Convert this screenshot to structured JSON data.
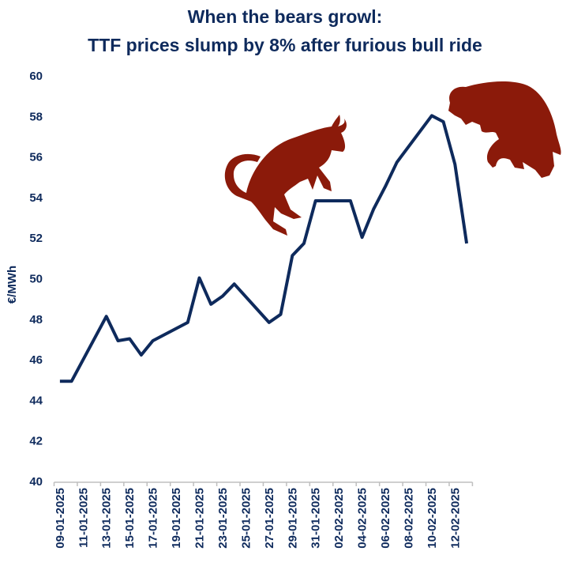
{
  "chart_data": {
    "type": "line",
    "title": [
      "When the bears growl:",
      "TTF prices slump by 8% after furious bull ride"
    ],
    "xlabel": "",
    "ylabel": "€/MWh",
    "ylim": [
      40,
      60
    ],
    "yticks": [
      40,
      42,
      44,
      46,
      48,
      50,
      52,
      54,
      56,
      58,
      60
    ],
    "grid": false,
    "legend": "none",
    "x_first_category": "09-01-2025",
    "x_last_category": "13-02-2025",
    "xtick_labels": [
      "09-01-2025",
      "11-01-2025",
      "13-01-2025",
      "15-01-2025",
      "17-01-2025",
      "19-01-2025",
      "21-01-2025",
      "23-01-2025",
      "25-01-2025",
      "27-01-2025",
      "29-01-2025",
      "31-01-2025",
      "02-02-2025",
      "04-02-2025",
      "06-02-2025",
      "08-02-2025",
      "10-02-2025",
      "12-02-2025"
    ],
    "series": [
      {
        "color": "#0e2a5c",
        "points": [
          {
            "x": "09-01-2025",
            "y": 44.9
          },
          {
            "x": "10-01-2025",
            "y": 44.9
          },
          {
            "x": "13-01-2025",
            "y": 48.1
          },
          {
            "x": "14-01-2025",
            "y": 46.9
          },
          {
            "x": "15-01-2025",
            "y": 47.0
          },
          {
            "x": "16-01-2025",
            "y": 46.2
          },
          {
            "x": "17-01-2025",
            "y": 46.9
          },
          {
            "x": "20-01-2025",
            "y": 47.8
          },
          {
            "x": "21-01-2025",
            "y": 50.0
          },
          {
            "x": "22-01-2025",
            "y": 48.7
          },
          {
            "x": "23-01-2025",
            "y": 49.1
          },
          {
            "x": "24-01-2025",
            "y": 49.7
          },
          {
            "x": "27-01-2025",
            "y": 47.8
          },
          {
            "x": "28-01-2025",
            "y": 48.2
          },
          {
            "x": "29-01-2025",
            "y": 51.1
          },
          {
            "x": "30-01-2025",
            "y": 51.7
          },
          {
            "x": "31-01-2025",
            "y": 53.8
          },
          {
            "x": "03-02-2025",
            "y": 53.8
          },
          {
            "x": "04-02-2025",
            "y": 52.0
          },
          {
            "x": "05-02-2025",
            "y": 53.4
          },
          {
            "x": "06-02-2025",
            "y": 54.5
          },
          {
            "x": "07-02-2025",
            "y": 55.7
          },
          {
            "x": "10-02-2025",
            "y": 58.0
          },
          {
            "x": "11-02-2025",
            "y": 57.7
          },
          {
            "x": "12-02-2025",
            "y": 55.6
          },
          {
            "x": "13-02-2025",
            "y": 51.7
          }
        ]
      }
    ],
    "decorations": {
      "bull_icon_color": "#8b1a0a",
      "bear_icon_color": "#8b1a0a"
    }
  }
}
